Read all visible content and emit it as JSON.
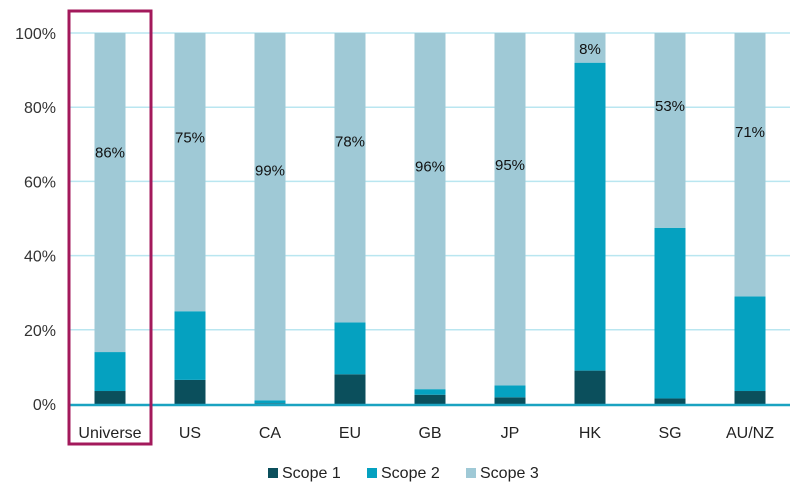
{
  "chart_data": {
    "type": "bar",
    "stacked": true,
    "categories": [
      "Universe",
      "US",
      "CA",
      "EU",
      "GB",
      "JP",
      "HK",
      "SG",
      "AU/NZ"
    ],
    "series": [
      {
        "name": "Scope 1",
        "color": "#0b4f5c",
        "values": [
          3.5,
          6.5,
          0.2,
          8,
          2.5,
          1.8,
          9,
          1.5,
          3.5
        ]
      },
      {
        "name": "Scope 2",
        "color": "#05a1c0",
        "values": [
          10.5,
          18.5,
          0.8,
          14,
          1.5,
          3.2,
          83,
          46,
          25.5
        ]
      },
      {
        "name": "Scope 3",
        "color": "#9fc9d6",
        "values": [
          86,
          75,
          99,
          78,
          96,
          95,
          8,
          52.5,
          71
        ]
      }
    ],
    "data_labels": [
      "86%",
      "75%",
      "99%",
      "78%",
      "96%",
      "95%",
      "8%",
      "53%",
      "71%"
    ],
    "y_ticks": [
      "0%",
      "20%",
      "40%",
      "60%",
      "80%",
      "100%"
    ],
    "ylim": [
      0,
      100
    ],
    "grid": true,
    "highlight_category": "Universe",
    "highlight_color": "#a3195b",
    "axis_color": "#1aa3c1",
    "grid_color": "#b9e6f0",
    "legend_position": "bottom"
  }
}
